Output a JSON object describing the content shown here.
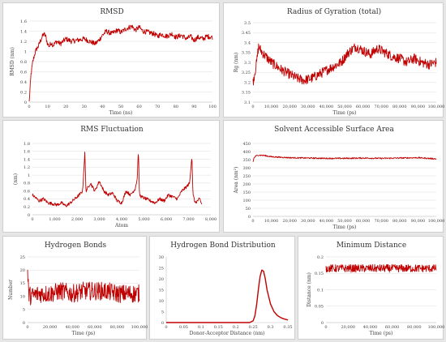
{
  "colors": {
    "series": "#c00000",
    "grid": "#dcdcdc",
    "background": "#e6e6e6"
  },
  "chart_data": [
    {
      "id": "rmsd",
      "type": "line",
      "title": "RMSD",
      "xlabel": "Time (ns)",
      "ylabel": "RMSD (nm)",
      "xlim": [
        0,
        100
      ],
      "ylim": [
        0,
        1.6
      ],
      "xticks": [
        0,
        10,
        20,
        30,
        40,
        50,
        60,
        70,
        80,
        90,
        100
      ],
      "xtick_labels": [
        "0",
        "10",
        "20",
        "30",
        "40",
        "50",
        "60",
        "70",
        "80",
        "90",
        "100"
      ],
      "yticks": [
        0,
        0.2,
        0.4,
        0.6,
        0.8,
        1,
        1.2,
        1.4,
        1.6
      ],
      "ytick_labels": [
        "0",
        "0.2",
        "0.4",
        "0.6",
        "0.8",
        "1",
        "1.2",
        "1.4",
        "1.6"
      ],
      "grid": "horizontal",
      "series": [
        {
          "x": [
            0,
            1,
            2,
            3,
            4,
            5,
            6,
            7,
            8,
            9,
            10,
            11,
            12,
            13,
            15,
            17,
            20,
            23,
            26,
            30,
            33,
            36,
            38,
            40,
            42,
            45,
            48,
            50,
            53,
            56,
            58,
            60,
            62,
            65,
            68,
            70,
            72,
            75,
            78,
            80,
            83,
            86,
            88,
            90,
            92,
            95,
            97,
            100
          ],
          "y": [
            0,
            0.55,
            0.8,
            0.95,
            1.05,
            1.1,
            1.2,
            1.28,
            1.35,
            1.3,
            1.15,
            1.1,
            1.18,
            1.12,
            1.2,
            1.15,
            1.25,
            1.2,
            1.22,
            1.25,
            1.2,
            1.15,
            1.22,
            1.32,
            1.4,
            1.35,
            1.42,
            1.38,
            1.45,
            1.5,
            1.42,
            1.48,
            1.4,
            1.38,
            1.35,
            1.3,
            1.34,
            1.3,
            1.35,
            1.28,
            1.32,
            1.25,
            1.3,
            1.22,
            1.28,
            1.25,
            1.3,
            1.28
          ],
          "noise": 0.05
        }
      ]
    },
    {
      "id": "rg",
      "type": "line",
      "title": "Radius of Gyration (total)",
      "xlabel": "Time (ps)",
      "ylabel": "Rg (nm)",
      "xlim": [
        0,
        100000
      ],
      "ylim": [
        3.1,
        3.5
      ],
      "xticks": [
        0,
        10000,
        20000,
        30000,
        40000,
        50000,
        60000,
        70000,
        80000,
        90000,
        100000
      ],
      "xtick_labels": [
        "0",
        "10,000",
        "20,000",
        "30,000",
        "40,000",
        "50,000",
        "60,000",
        "70,000",
        "80,000",
        "90,000",
        "100,000"
      ],
      "yticks": [
        3.1,
        3.15,
        3.2,
        3.25,
        3.3,
        3.35,
        3.4,
        3.45,
        3.5
      ],
      "ytick_labels": [
        "3.1",
        "3.15",
        "3.2",
        "3.25",
        "3.3",
        "3.35",
        "3.4",
        "3.45",
        "3.5"
      ],
      "grid": "horizontal",
      "series": [
        {
          "x": [
            0,
            1000,
            2000,
            3000,
            5000,
            8000,
            10000,
            13000,
            16000,
            20000,
            24000,
            28000,
            32000,
            36000,
            40000,
            44000,
            48000,
            52000,
            56000,
            60000,
            64000,
            68000,
            72000,
            76000,
            80000,
            84000,
            88000,
            92000,
            96000,
            100000
          ],
          "y": [
            3.2,
            3.25,
            3.3,
            3.38,
            3.35,
            3.32,
            3.3,
            3.28,
            3.26,
            3.24,
            3.22,
            3.21,
            3.22,
            3.24,
            3.26,
            3.28,
            3.3,
            3.35,
            3.38,
            3.36,
            3.34,
            3.37,
            3.35,
            3.33,
            3.32,
            3.3,
            3.32,
            3.3,
            3.29,
            3.3
          ],
          "noise": 0.025
        }
      ]
    },
    {
      "id": "rmsf",
      "type": "line",
      "title": "RMS Fluctuation",
      "xlabel": "Atom",
      "ylabel": "(nm)",
      "xlim": [
        0,
        8000
      ],
      "ylim": [
        0,
        1.8
      ],
      "xticks": [
        0,
        1000,
        2000,
        3000,
        4000,
        5000,
        6000,
        7000,
        8000
      ],
      "xtick_labels": [
        "0",
        "1,000",
        "2,000",
        "3,000",
        "4,000",
        "5,000",
        "6,000",
        "7,000",
        "8,000"
      ],
      "yticks": [
        0,
        0.2,
        0.4,
        0.6,
        0.8,
        1,
        1.2,
        1.4,
        1.6,
        1.8
      ],
      "ytick_labels": [
        "0",
        "0.2",
        "0.4",
        "0.6",
        "0.8",
        "1",
        "1.2",
        "1.4",
        "1.6",
        "1.8"
      ],
      "grid": "horizontal",
      "series": [
        {
          "x": [
            0,
            100,
            300,
            500,
            700,
            900,
            1100,
            1300,
            1500,
            1700,
            1900,
            2100,
            2250,
            2350,
            2400,
            2500,
            2600,
            2800,
            3000,
            3200,
            3400,
            3600,
            3800,
            4000,
            4200,
            4400,
            4600,
            4700,
            4750,
            4800,
            4900,
            5100,
            5300,
            5500,
            5700,
            5900,
            6100,
            6300,
            6500,
            6700,
            6900,
            7050,
            7150,
            7200,
            7300,
            7400,
            7500,
            7600
          ],
          "y": [
            0.5,
            0.45,
            0.35,
            0.4,
            0.3,
            0.28,
            0.25,
            0.3,
            0.22,
            0.3,
            0.4,
            0.5,
            0.6,
            1.58,
            0.6,
            0.7,
            0.8,
            0.6,
            0.85,
            0.6,
            0.5,
            0.55,
            0.35,
            0.3,
            0.6,
            0.5,
            0.65,
            0.9,
            1.65,
            0.5,
            0.45,
            0.4,
            0.35,
            0.3,
            0.4,
            0.35,
            0.5,
            0.45,
            0.4,
            0.6,
            0.7,
            0.8,
            1.5,
            0.5,
            0.3,
            0.35,
            0.4,
            0.25
          ],
          "noise": 0.04
        }
      ]
    },
    {
      "id": "sasa",
      "type": "line",
      "title": "Solvent Accessible Surface Area",
      "xlabel": "Time (ps)",
      "ylabel": "Area (nm²)",
      "xlim": [
        0,
        100000
      ],
      "ylim": [
        0,
        450
      ],
      "xticks": [
        0,
        10000,
        20000,
        30000,
        40000,
        50000,
        60000,
        70000,
        80000,
        90000,
        100000
      ],
      "xtick_labels": [
        "0",
        "10,000",
        "20,000",
        "30,000",
        "40,000",
        "50,000",
        "60,000",
        "70,000",
        "80,000",
        "90,000",
        "100,000"
      ],
      "yticks": [
        0,
        50,
        100,
        150,
        200,
        250,
        300,
        350,
        400,
        450
      ],
      "ytick_labels": [
        "0",
        "50",
        "100",
        "150",
        "200",
        "250",
        "300",
        "350",
        "400",
        "450"
      ],
      "grid": "horizontal",
      "series": [
        {
          "x": [
            0,
            500,
            1500,
            3000,
            6000,
            10000,
            20000,
            30000,
            40000,
            50000,
            60000,
            70000,
            80000,
            90000,
            100000
          ],
          "y": [
            335,
            360,
            372,
            378,
            376,
            368,
            362,
            360,
            358,
            358,
            360,
            358,
            360,
            362,
            355
          ],
          "noise": 4
        }
      ]
    },
    {
      "id": "hbonds",
      "type": "line",
      "title": "Hydrogen Bonds",
      "xlabel": "Time (ps)",
      "ylabel": "Number",
      "xlim": [
        0,
        100000
      ],
      "ylim": [
        0,
        25
      ],
      "xticks": [
        0,
        20000,
        40000,
        60000,
        80000,
        100000
      ],
      "xtick_labels": [
        "0",
        "20,000",
        "40,000",
        "60,000",
        "80,000",
        "100,000"
      ],
      "yticks": [
        0,
        5,
        10,
        15,
        20,
        25
      ],
      "ytick_labels": [
        "0",
        "5",
        "10",
        "15",
        "20",
        "25"
      ],
      "grid": "horizontal",
      "series": [
        {
          "x": [
            0,
            1000,
            3000,
            10000,
            20000,
            30000,
            40000,
            50000,
            60000,
            70000,
            80000,
            90000,
            100000
          ],
          "y": [
            19,
            11,
            10,
            11,
            11,
            12,
            11,
            12,
            12,
            12,
            11,
            11,
            11
          ],
          "noise": 3.5
        }
      ]
    },
    {
      "id": "hbdist",
      "type": "line",
      "title": "Hydrogen Bond Distribution",
      "xlabel": "Donor-Acceptor Distance (nm)",
      "ylabel": "",
      "xlim": [
        0,
        0.35
      ],
      "ylim": [
        0,
        30
      ],
      "xticks": [
        0,
        0.05,
        0.1,
        0.15,
        0.2,
        0.25,
        0.3,
        0.35
      ],
      "xtick_labels": [
        "0",
        "0.05",
        "0.1",
        "0.15",
        "0.2",
        "0.25",
        "0.3",
        "0.35"
      ],
      "yticks": [
        0,
        5,
        10,
        15,
        20,
        25,
        30
      ],
      "ytick_labels": [
        "0",
        "5",
        "10",
        "15",
        "20",
        "25",
        "30"
      ],
      "grid": "none",
      "series": [
        {
          "x": [
            0,
            0.05,
            0.1,
            0.15,
            0.2,
            0.24,
            0.25,
            0.255,
            0.26,
            0.265,
            0.27,
            0.275,
            0.28,
            0.285,
            0.29,
            0.3,
            0.31,
            0.32,
            0.33,
            0.34,
            0.35
          ],
          "y": [
            0,
            0,
            0,
            0,
            0,
            0,
            0.8,
            3,
            8,
            15,
            21,
            24,
            23.5,
            20,
            15,
            8.5,
            5,
            3.2,
            2.2,
            1.6,
            1.2
          ],
          "noise": 0
        }
      ]
    },
    {
      "id": "mindist",
      "type": "line",
      "title": "Minimum Distance",
      "xlabel": "Time (ps)",
      "ylabel": "Distance (nm)",
      "xlim": [
        0,
        100000
      ],
      "ylim": [
        0,
        0.2
      ],
      "xticks": [
        0,
        20000,
        40000,
        60000,
        80000,
        100000
      ],
      "xtick_labels": [
        "0",
        "20,000",
        "40,000",
        "60,000",
        "80,000",
        "100,000"
      ],
      "yticks": [
        0,
        0.05,
        0.1,
        0.15,
        0.2
      ],
      "ytick_labels": [
        "0",
        "0.05",
        "0.1",
        "0.15",
        "0.2"
      ],
      "grid": "horizontal",
      "series": [
        {
          "x": [
            0,
            100000
          ],
          "y": [
            0.165,
            0.165
          ],
          "noise": 0.012
        }
      ]
    }
  ]
}
